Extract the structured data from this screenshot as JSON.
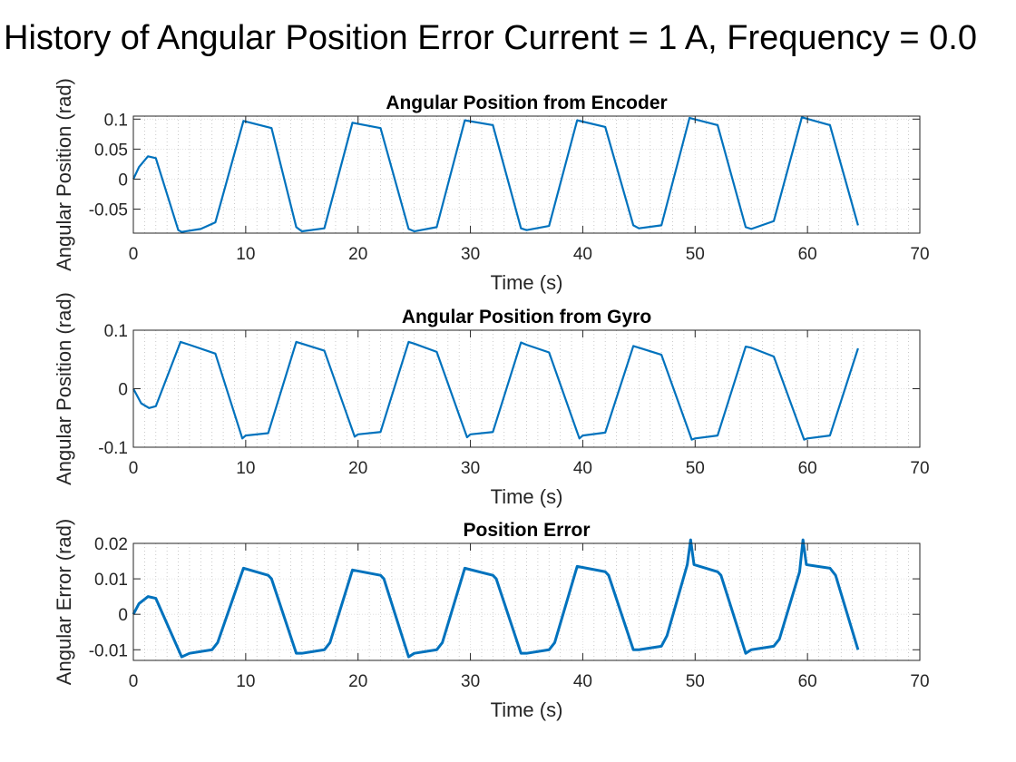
{
  "figure": {
    "suptitle": "History of Angular Position Error Current = 1 A, Frequency = 0.0"
  },
  "colors": {
    "line": "#0072BD",
    "axis": "#262626",
    "grid": "#bdbdbd",
    "background": "#ffffff"
  },
  "chart_data": [
    {
      "type": "line",
      "title": "Angular Position from Encoder",
      "xlabel": "Time (s)",
      "ylabel": "Angular Position (rad)",
      "xlim": [
        0,
        70
      ],
      "ylim": [
        -0.09,
        0.105
      ],
      "xticks": [
        0,
        10,
        20,
        30,
        40,
        50,
        60,
        70
      ],
      "xtick_labels": [
        "0",
        "10",
        "20",
        "30",
        "40",
        "50",
        "60",
        "70"
      ],
      "yticks": [
        -0.05,
        0,
        0.05,
        0.1
      ],
      "ytick_labels": [
        "-0.05",
        "0",
        "0.05",
        "0.1"
      ],
      "grid": "on (minor dotted)",
      "series": [
        {
          "x": [
            0,
            0.5,
            1.3,
            2.0,
            4.0,
            4.3,
            6.0,
            7.3,
            9.8,
            12.3,
            14.5,
            15.0,
            17.0,
            19.5,
            22.0,
            24.5,
            25.0,
            27.0,
            29.5,
            32.0,
            34.5,
            35.0,
            37.0,
            39.5,
            42.0,
            44.5,
            45.0,
            47.0,
            49.5,
            52.0,
            54.5,
            55.0,
            57.0,
            59.5,
            62.0,
            64.5
          ],
          "y": [
            0,
            0.02,
            0.038,
            0.035,
            -0.085,
            -0.088,
            -0.083,
            -0.072,
            0.097,
            0.085,
            -0.08,
            -0.087,
            -0.082,
            0.094,
            0.085,
            -0.083,
            -0.087,
            -0.08,
            0.098,
            0.09,
            -0.082,
            -0.085,
            -0.078,
            0.098,
            0.087,
            -0.077,
            -0.082,
            -0.077,
            0.102,
            0.09,
            -0.08,
            -0.083,
            -0.07,
            0.103,
            0.09,
            -0.077
          ]
        }
      ]
    },
    {
      "type": "line",
      "title": "Angular Position from Gyro",
      "xlabel": "Time (s)",
      "ylabel": "Angular Position (rad)",
      "xlim": [
        0,
        70
      ],
      "ylim": [
        -0.1,
        0.1
      ],
      "xticks": [
        0,
        10,
        20,
        30,
        40,
        50,
        60,
        70
      ],
      "xtick_labels": [
        "0",
        "10",
        "20",
        "30",
        "40",
        "50",
        "60",
        "70"
      ],
      "yticks": [
        -0.1,
        0,
        0.1
      ],
      "ytick_labels": [
        "-0.1",
        "0",
        "0.1"
      ],
      "grid": "on (minor dotted)",
      "series": [
        {
          "x": [
            0,
            0.7,
            1.4,
            2.0,
            4.2,
            5.0,
            7.3,
            9.7,
            10.0,
            12.0,
            14.5,
            15.0,
            17.0,
            19.7,
            20.0,
            22.0,
            24.5,
            25.0,
            27.0,
            29.7,
            30.0,
            32.0,
            34.5,
            35.0,
            37.0,
            39.7,
            40.0,
            42.0,
            44.5,
            45.0,
            47.0,
            49.7,
            50.0,
            52.0,
            54.5,
            55.0,
            57.0,
            59.7,
            60.0,
            62.0,
            64.5
          ],
          "y": [
            0,
            -0.025,
            -0.033,
            -0.03,
            0.08,
            0.075,
            0.06,
            -0.085,
            -0.08,
            -0.076,
            0.08,
            0.077,
            0.065,
            -0.082,
            -0.078,
            -0.074,
            0.08,
            0.077,
            0.063,
            -0.083,
            -0.078,
            -0.074,
            0.079,
            0.075,
            0.062,
            -0.085,
            -0.08,
            -0.075,
            0.073,
            0.07,
            0.058,
            -0.087,
            -0.085,
            -0.08,
            0.072,
            0.07,
            0.055,
            -0.087,
            -0.085,
            -0.08,
            0.069
          ]
        }
      ]
    },
    {
      "type": "line",
      "title": "Position Error",
      "xlabel": "Time (s)",
      "ylabel": "Angular Error (rad)",
      "xlim": [
        0,
        70
      ],
      "ylim": [
        -0.013,
        0.02
      ],
      "xticks": [
        0,
        10,
        20,
        30,
        40,
        50,
        60,
        70
      ],
      "xtick_labels": [
        "0",
        "10",
        "20",
        "30",
        "40",
        "50",
        "60",
        "70"
      ],
      "yticks": [
        -0.01,
        0,
        0.01,
        0.02
      ],
      "ytick_labels": [
        "-0.01",
        "0",
        "0.01",
        "0.02"
      ],
      "grid": "on (minor dotted)",
      "series": [
        {
          "x": [
            0,
            0.5,
            1.3,
            2.0,
            4.3,
            5.0,
            7.0,
            7.5,
            9.8,
            12.0,
            12.3,
            14.5,
            15.0,
            17.0,
            17.5,
            19.5,
            22.0,
            22.3,
            24.5,
            25.0,
            27.0,
            27.5,
            29.5,
            32.0,
            32.3,
            34.5,
            35.0,
            37.0,
            37.5,
            39.5,
            42.0,
            42.3,
            44.5,
            45.0,
            47.0,
            47.5,
            49.3,
            49.6,
            49.9,
            52.0,
            52.3,
            54.5,
            55.0,
            57.0,
            57.5,
            59.3,
            59.6,
            59.9,
            62.0,
            62.5,
            64.5
          ],
          "y": [
            0,
            0.003,
            0.005,
            0.0045,
            -0.012,
            -0.011,
            -0.01,
            -0.008,
            0.013,
            0.011,
            0.01,
            -0.011,
            -0.011,
            -0.01,
            -0.008,
            0.0125,
            0.011,
            0.01,
            -0.012,
            -0.011,
            -0.01,
            -0.008,
            0.013,
            0.011,
            0.01,
            -0.011,
            -0.011,
            -0.01,
            -0.008,
            0.0135,
            0.012,
            0.011,
            -0.01,
            -0.01,
            -0.009,
            -0.006,
            0.014,
            0.021,
            0.014,
            0.012,
            0.011,
            -0.011,
            -0.01,
            -0.009,
            -0.007,
            0.012,
            0.021,
            0.014,
            0.013,
            0.011,
            -0.01
          ]
        }
      ]
    }
  ]
}
